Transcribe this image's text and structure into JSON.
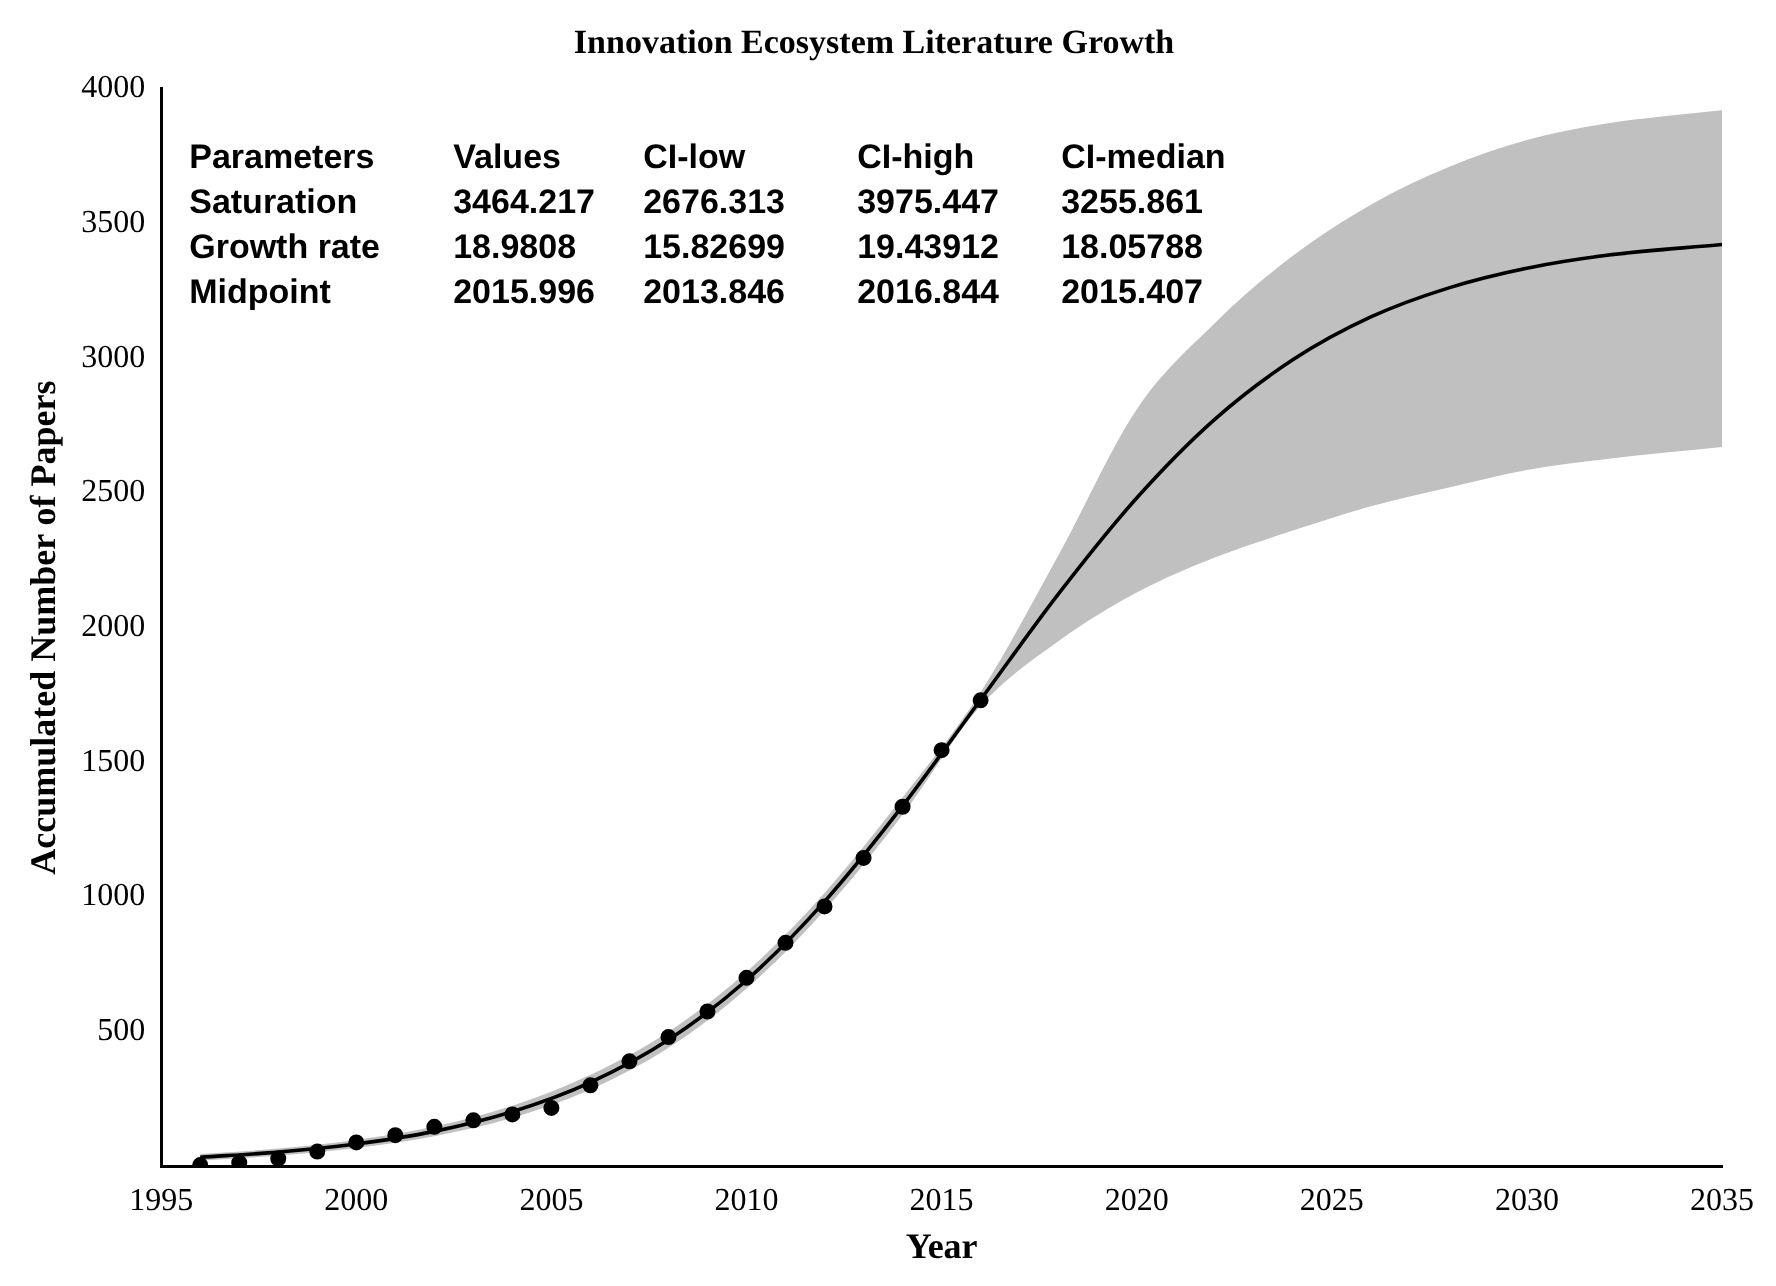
{
  "chart_data": {
    "type": "line",
    "title": "Innovation Ecosystem Literature Growth",
    "xlabel": "Year",
    "ylabel": "Accumulated Number of Papers",
    "xlim": [
      1995,
      2035
    ],
    "xticks": [
      1995,
      2000,
      2005,
      2010,
      2015,
      2020,
      2025,
      2030,
      2035
    ],
    "ylim": [
      0,
      4000
    ],
    "yticks": [
      500,
      1000,
      1500,
      2000,
      2500,
      3000,
      3500,
      4000
    ],
    "grid": false,
    "legend": false,
    "annotations": [
      "Parameters",
      "Values",
      "CI-low",
      "CI-high",
      "CI-median",
      "Saturation",
      "3464.217",
      "2676.313",
      "3975.447",
      "3255.861",
      "Growth rate",
      "18.9808",
      "15.82699",
      "19.43912",
      "18.05788",
      "Midpoint",
      "2015.996",
      "2013.846",
      "2016.844",
      "2015.407"
    ],
    "series": [
      {
        "type": "line",
        "color": "#000000",
        "marker": "none",
        "x": [
          1996,
          1998,
          2000,
          2002,
          2004,
          2006,
          2008,
          2010,
          2012,
          2014,
          2016,
          2018,
          2020,
          2022,
          2024,
          2026,
          2028,
          2030,
          2032,
          2035
        ],
        "values": [
          34,
          53,
          83,
          130,
          203,
          312,
          470,
          691,
          983,
          1338,
          1732,
          2126,
          2481,
          2773,
          2994,
          3153,
          3261,
          3334,
          3381,
          3422
        ],
        "lower": [
          22,
          40,
          68,
          112,
          180,
          285,
          440,
          660,
          950,
          1305,
          1710,
          1950,
          2130,
          2260,
          2360,
          2450,
          2520,
          2585,
          2625,
          2670
        ],
        "upper": [
          46,
          66,
          98,
          148,
          225,
          340,
          500,
          722,
          1015,
          1370,
          1760,
          2270,
          2810,
          3130,
          3380,
          3570,
          3710,
          3810,
          3870,
          3920
        ]
      },
      {
        "type": "scatter",
        "color": "#000000",
        "marker": "circle",
        "x": [
          1996,
          1997,
          1998,
          1999,
          2000,
          2001,
          2002,
          2003,
          2004,
          2005,
          2006,
          2007,
          2008,
          2009,
          2010,
          2011,
          2012,
          2013,
          2014,
          2015,
          2016
        ],
        "values": [
          5,
          14,
          29,
          55,
          89,
          116,
          147,
          171,
          193,
          217,
          301,
          390,
          480,
          575,
          700,
          830,
          965,
          1145,
          1335,
          1545,
          1730
        ]
      }
    ]
  }
}
